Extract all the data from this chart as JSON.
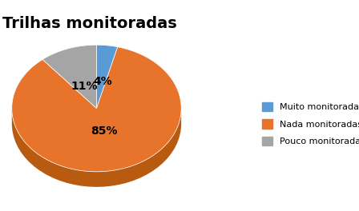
{
  "title": "Trilhas monitoradas",
  "slices": [
    4,
    85,
    11
  ],
  "labels": [
    "Muito monitoradas",
    "Nada monitoradas",
    "Pouco monitoradas"
  ],
  "colors": [
    "#5B9BD5",
    "#E8732A",
    "#A5A5A5"
  ],
  "dark_colors": [
    "#3A6E9E",
    "#B85A10",
    "#787878"
  ],
  "pct_labels": [
    "4%",
    "85%",
    "11%"
  ],
  "title_fontsize": 14,
  "pct_fontsize": 10,
  "legend_fontsize": 8,
  "startangle": 90,
  "background_color": "#ffffff"
}
